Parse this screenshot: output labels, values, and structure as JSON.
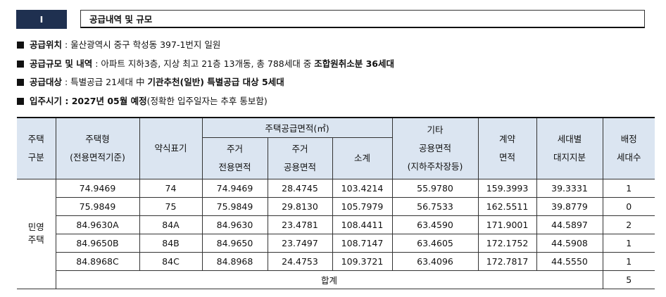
{
  "header": {
    "number": "Ⅰ",
    "title": "공급내역 및 규모"
  },
  "bullets": [
    [
      {
        "text": "공급위치",
        "bold": true
      },
      {
        "text": " : 울산광역시 중구 학성동 397-1번지 일원",
        "bold": false
      }
    ],
    [
      {
        "text": "공급규모 및 내역",
        "bold": true
      },
      {
        "text": " : 아파트 지하3층, 지상 최고 21층 13개동, 총 788세대 중 ",
        "bold": false
      },
      {
        "text": "조합원취소분 36세대",
        "bold": true
      }
    ],
    [
      {
        "text": "공급대상",
        "bold": true
      },
      {
        "text": " : 특별공급 21세대 中 ",
        "bold": false
      },
      {
        "text": "기관추천(일반) 특별공급 대상 5세대",
        "bold": true
      }
    ],
    [
      {
        "text": "입주시기 : 2027년 05월 예정",
        "bold": true
      },
      {
        "text": "(정확한 입주일자는 추후 통보함)",
        "bold": false
      }
    ]
  ],
  "table": {
    "head": {
      "type_col": [
        "주택",
        "구분"
      ],
      "model": [
        "주택형",
        "(전용면적기준)"
      ],
      "short": [
        "약식표기"
      ],
      "supply_group": "주택공급면적(㎡)",
      "exclusive": [
        "주거",
        "전용면적"
      ],
      "common": [
        "주거",
        "공용면적"
      ],
      "subtotal": [
        "소계"
      ],
      "other": [
        "기타",
        "공용면적",
        "(지하주차장등)"
      ],
      "contract": [
        "계약",
        "면적"
      ],
      "land": [
        "세대별",
        "대지지분"
      ],
      "units": [
        "배정",
        "세대수"
      ]
    },
    "group": [
      "민영",
      "주택"
    ],
    "rows": [
      [
        "74.9469",
        "74",
        "74.9469",
        "28.4745",
        "103.4214",
        "55.9780",
        "159.3993",
        "39.3331",
        "1"
      ],
      [
        "75.9849",
        "75",
        "75.9849",
        "29.8130",
        "105.7979",
        "56.7533",
        "162.5511",
        "39.8779",
        "0"
      ],
      [
        "84.9630A",
        "84A",
        "84.9630",
        "23.4781",
        "108.4411",
        "63.4590",
        "171.9001",
        "44.5897",
        "2"
      ],
      [
        "84.9650B",
        "84B",
        "84.9650",
        "23.7497",
        "108.7147",
        "63.4605",
        "172.1752",
        "44.5908",
        "1"
      ],
      [
        "84.8968C",
        "84C",
        "84.8968",
        "24.4753",
        "109.3721",
        "63.4096",
        "172.7817",
        "44.5550",
        "1"
      ]
    ],
    "total_label": "합계",
    "total_value": "5"
  }
}
